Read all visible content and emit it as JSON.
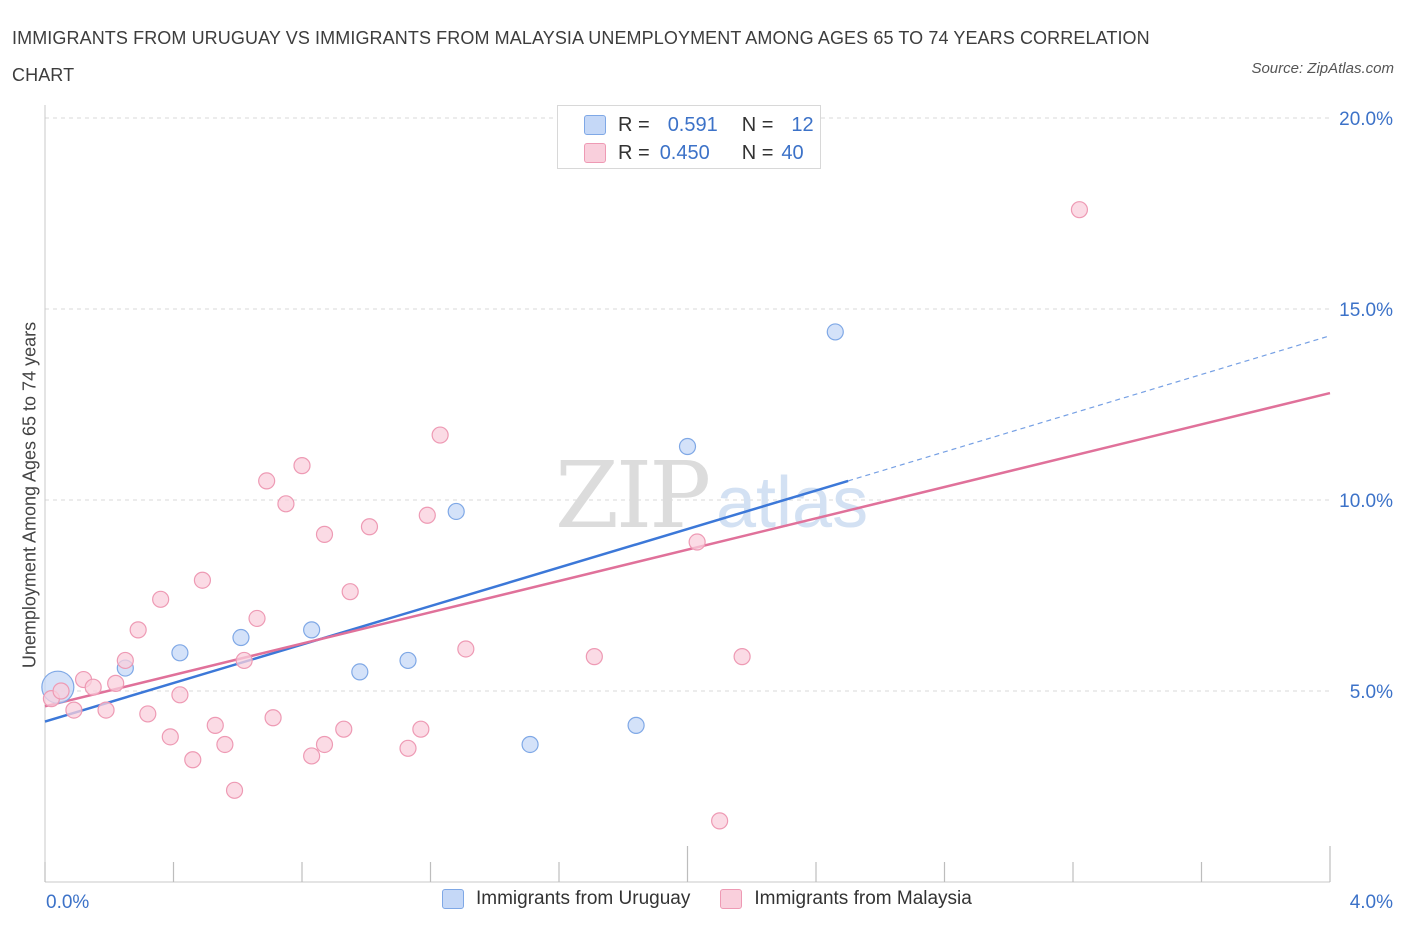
{
  "title": "IMMIGRANTS FROM URUGUAY VS IMMIGRANTS FROM MALAYSIA UNEMPLOYMENT AMONG AGES 65 TO 74 YEARS CORRELATION CHART",
  "source": "Source: ZipAtlas.com",
  "colors": {
    "uruguay": "#3c78d8",
    "uruguay_fill": "#c5d8f7",
    "malaysia": "#e0719a",
    "malaysia_fill": "#f9cfdc",
    "axis_value": "#3c72c8",
    "grid": "#d9d9d9"
  },
  "legend": {
    "uruguay": {
      "r_label": "R =",
      "r_value": "0.591",
      "n_label": "N =",
      "n_value": "12"
    },
    "malaysia": {
      "r_label": "R =",
      "r_value": "0.450",
      "n_label": "N =",
      "n_value": "40"
    }
  },
  "chart_data": {
    "type": "scatter",
    "title": "IMMIGRANTS FROM URUGUAY VS IMMIGRANTS FROM MALAYSIA UNEMPLOYMENT AMONG AGES 65 TO 74 YEARS CORRELATION CHART",
    "xlabel": "",
    "ylabel": "Unemployment Among Ages 65 to 74 years",
    "xlim": [
      0,
      4.0
    ],
    "ylim": [
      0,
      20.0
    ],
    "x_tick_labels": [
      "0.0%",
      "4.0%"
    ],
    "y_ticks": [
      5,
      10,
      15,
      20
    ],
    "y_tick_labels": [
      "5.0%",
      "10.0%",
      "15.0%",
      "20.0%"
    ],
    "grid": true,
    "series": [
      {
        "name": "Immigrants from Uruguay",
        "color": "#3c78d8",
        "points": [
          {
            "x": 0.04,
            "y": 5.1,
            "big": true
          },
          {
            "x": 0.25,
            "y": 5.6
          },
          {
            "x": 0.42,
            "y": 6.0
          },
          {
            "x": 0.61,
            "y": 6.4
          },
          {
            "x": 0.83,
            "y": 6.6
          },
          {
            "x": 0.98,
            "y": 5.5
          },
          {
            "x": 1.13,
            "y": 5.8
          },
          {
            "x": 1.28,
            "y": 9.7
          },
          {
            "x": 1.51,
            "y": 3.6
          },
          {
            "x": 1.84,
            "y": 4.1
          },
          {
            "x": 2.0,
            "y": 11.4
          },
          {
            "x": 2.46,
            "y": 14.4
          }
        ],
        "trend": {
          "x0": 0.0,
          "y0": 4.2,
          "x1": 2.5,
          "y1": 10.5,
          "dashed_to_x": 4.0,
          "dashed_to_y": 14.3
        }
      },
      {
        "name": "Immigrants from Malaysia",
        "color": "#e0719a",
        "points": [
          {
            "x": 0.02,
            "y": 4.8
          },
          {
            "x": 0.05,
            "y": 5.0
          },
          {
            "x": 0.09,
            "y": 4.5
          },
          {
            "x": 0.12,
            "y": 5.3
          },
          {
            "x": 0.15,
            "y": 5.1
          },
          {
            "x": 0.19,
            "y": 4.5
          },
          {
            "x": 0.22,
            "y": 5.2
          },
          {
            "x": 0.25,
            "y": 5.8
          },
          {
            "x": 0.29,
            "y": 6.6
          },
          {
            "x": 0.32,
            "y": 4.4
          },
          {
            "x": 0.36,
            "y": 7.4
          },
          {
            "x": 0.39,
            "y": 3.8
          },
          {
            "x": 0.42,
            "y": 4.9
          },
          {
            "x": 0.46,
            "y": 3.2
          },
          {
            "x": 0.49,
            "y": 7.9
          },
          {
            "x": 0.53,
            "y": 4.1
          },
          {
            "x": 0.56,
            "y": 3.6
          },
          {
            "x": 0.59,
            "y": 2.4
          },
          {
            "x": 0.62,
            "y": 5.8
          },
          {
            "x": 0.66,
            "y": 6.9
          },
          {
            "x": 0.69,
            "y": 10.5
          },
          {
            "x": 0.71,
            "y": 4.3
          },
          {
            "x": 0.75,
            "y": 9.9
          },
          {
            "x": 0.8,
            "y": 10.9
          },
          {
            "x": 0.83,
            "y": 3.3
          },
          {
            "x": 0.87,
            "y": 3.6
          },
          {
            "x": 0.87,
            "y": 9.1
          },
          {
            "x": 0.93,
            "y": 4.0
          },
          {
            "x": 0.95,
            "y": 7.6
          },
          {
            "x": 1.01,
            "y": 9.3
          },
          {
            "x": 1.13,
            "y": 3.5
          },
          {
            "x": 1.17,
            "y": 4.0
          },
          {
            "x": 1.19,
            "y": 9.6
          },
          {
            "x": 1.23,
            "y": 11.7
          },
          {
            "x": 1.31,
            "y": 6.1
          },
          {
            "x": 1.71,
            "y": 5.9
          },
          {
            "x": 2.03,
            "y": 8.9
          },
          {
            "x": 2.1,
            "y": 1.6
          },
          {
            "x": 2.17,
            "y": 5.9
          },
          {
            "x": 3.22,
            "y": 17.6
          }
        ],
        "trend": {
          "x0": 0.0,
          "y0": 4.6,
          "x1": 4.0,
          "y1": 12.8
        }
      }
    ]
  },
  "bottom_legend": {
    "uruguay_label": "Immigrants from Uruguay",
    "malaysia_label": "Immigrants from Malaysia"
  }
}
